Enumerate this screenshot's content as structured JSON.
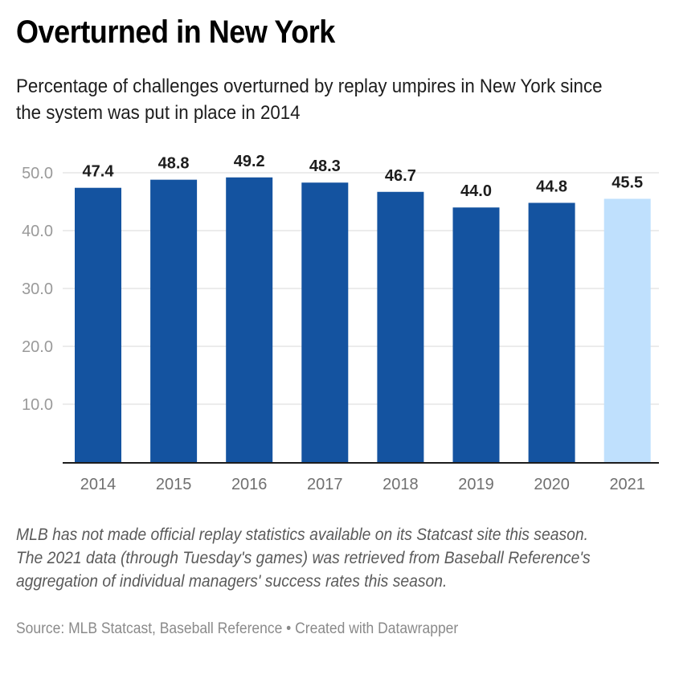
{
  "header": {
    "title": "Overturned in New York",
    "subtitle": "Percentage of challenges overturned by replay umpires in New York since the system was put in place in 2014"
  },
  "footer": {
    "notes": "MLB has not made official replay statistics available on its Statcast site this season. The 2021 data (through Tuesday's games) was retrieved from Baseball Reference's aggregation of individual managers' success rates this season.",
    "source": "Source: MLB Statcast, Baseball Reference • Created with Datawrapper"
  },
  "colors": {
    "bar_primary": "#1453a0",
    "bar_highlight": "#bfe0fd",
    "gridline": "#e6e6e6",
    "baseline": "#1d1d1d"
  },
  "chart_data": {
    "type": "bar",
    "title": "Overturned in New York",
    "subtitle": "Percentage of challenges overturned by replay umpires in New York since the system was put in place in 2014",
    "xlabel": "",
    "ylabel": "",
    "categories": [
      "2014",
      "2015",
      "2016",
      "2017",
      "2018",
      "2019",
      "2020",
      "2021"
    ],
    "values": [
      47.4,
      48.8,
      49.2,
      48.3,
      46.7,
      44.0,
      44.8,
      45.5
    ],
    "data_labels": [
      "47.4",
      "48.8",
      "49.2",
      "48.3",
      "46.7",
      "44.0",
      "44.8",
      "45.5"
    ],
    "highlighted": [
      "2021"
    ],
    "ylim": [
      0,
      50
    ],
    "yticks": [
      10,
      20,
      30,
      40,
      50
    ],
    "ytick_labels": [
      "10.0",
      "20.0",
      "30.0",
      "40.0",
      "50.0"
    ],
    "grid": true,
    "legend": "none"
  }
}
